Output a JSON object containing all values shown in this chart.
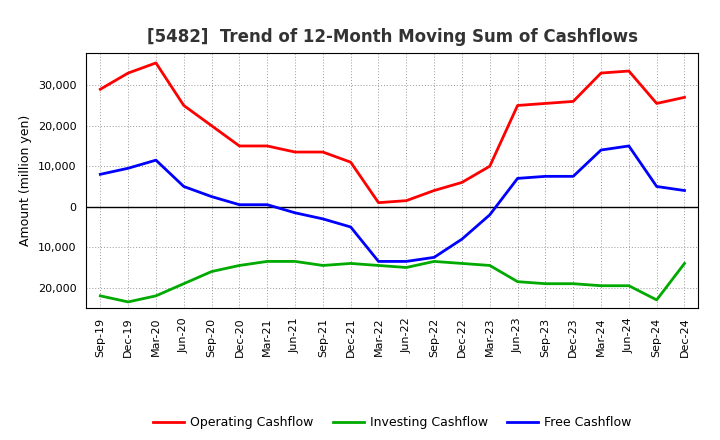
{
  "title": "[5482]  Trend of 12-Month Moving Sum of Cashflows",
  "ylabel": "Amount (million yen)",
  "background_color": "#ffffff",
  "grid_color": "#999999",
  "x_labels": [
    "Sep-19",
    "Dec-19",
    "Mar-20",
    "Jun-20",
    "Sep-20",
    "Dec-20",
    "Mar-21",
    "Jun-21",
    "Sep-21",
    "Dec-21",
    "Mar-22",
    "Jun-22",
    "Sep-22",
    "Dec-22",
    "Mar-23",
    "Jun-23",
    "Sep-23",
    "Dec-23",
    "Mar-24",
    "Jun-24",
    "Sep-24",
    "Dec-24"
  ],
  "operating": [
    29000,
    33000,
    35500,
    25000,
    20000,
    15000,
    15000,
    13500,
    13500,
    11000,
    1000,
    1500,
    4000,
    6000,
    10000,
    25000,
    25500,
    26000,
    33000,
    33500,
    25500,
    27000
  ],
  "investing": [
    -22000,
    -23500,
    -22000,
    -19000,
    -16000,
    -14500,
    -13500,
    -13500,
    -14500,
    -14000,
    -14500,
    -15000,
    -13500,
    -14000,
    -14500,
    -18500,
    -19000,
    -19000,
    -19500,
    -19500,
    -23000,
    -14000
  ],
  "free": [
    8000,
    9500,
    11500,
    5000,
    2500,
    500,
    500,
    -1500,
    -3000,
    -5000,
    -13500,
    -13500,
    -12500,
    -8000,
    -2000,
    7000,
    7500,
    7500,
    14000,
    15000,
    5000,
    4000
  ],
  "ylim": [
    -25000,
    38000
  ],
  "yticks": [
    -20000,
    -10000,
    0,
    10000,
    20000,
    30000
  ],
  "operating_color": "#ff0000",
  "investing_color": "#00aa00",
  "free_color": "#0000ff",
  "line_width": 2.0,
  "title_fontsize": 12,
  "axis_fontsize": 8,
  "ylabel_fontsize": 9
}
